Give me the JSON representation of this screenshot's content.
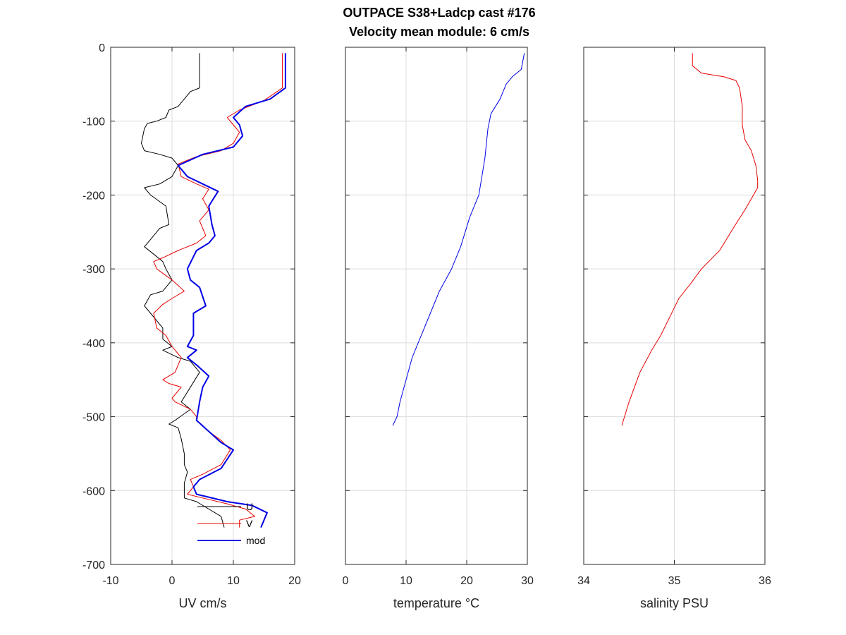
{
  "title_lines": [
    "OUTPACE S38+Ladcp cast #176",
    "Velocity mean module:  6 cm/s"
  ],
  "chart_data": [
    {
      "type": "line",
      "name": "uv",
      "xlabel": "UV cm/s",
      "ylabel": "",
      "xlim": [
        -10,
        20
      ],
      "ylim": [
        -700,
        0
      ],
      "xticks": [
        -10,
        0,
        10,
        20
      ],
      "yticks": [
        0,
        -100,
        -200,
        -300,
        -400,
        -500,
        -600,
        -700
      ],
      "grid": true,
      "legend": {
        "placement": "bottom-right",
        "entries": [
          "U",
          "V",
          "mod"
        ]
      },
      "series": [
        {
          "name": "U",
          "color": "#000000",
          "width": 1,
          "points": [
            [
              4.5,
              -8
            ],
            [
              4.5,
              -55
            ],
            [
              3,
              -60
            ],
            [
              2,
              -70
            ],
            [
              1,
              -80
            ],
            [
              -0.5,
              -85
            ],
            [
              -1,
              -95
            ],
            [
              -2.5,
              -100
            ],
            [
              -4,
              -103
            ],
            [
              -4.5,
              -110
            ],
            [
              -5,
              -130
            ],
            [
              -4.5,
              -140
            ],
            [
              -2,
              -145
            ],
            [
              0,
              -150
            ],
            [
              1,
              -160
            ],
            [
              0,
              -175
            ],
            [
              -2,
              -185
            ],
            [
              -4.5,
              -190
            ],
            [
              -3.5,
              -200
            ],
            [
              -1,
              -215
            ],
            [
              -0.5,
              -240
            ],
            [
              -2,
              -245
            ],
            [
              -3.5,
              -260
            ],
            [
              -4.5,
              -270
            ],
            [
              -3,
              -280
            ],
            [
              -1.5,
              -290
            ],
            [
              -1,
              -300
            ],
            [
              0,
              -315
            ],
            [
              -1.5,
              -330
            ],
            [
              -3.5,
              -335
            ],
            [
              -4.5,
              -350
            ],
            [
              -3.5,
              -360
            ],
            [
              -1.5,
              -380
            ],
            [
              -1.5,
              -395
            ],
            [
              0,
              -405
            ],
            [
              -1.5,
              -410
            ],
            [
              1,
              -420
            ],
            [
              3,
              -425
            ],
            [
              4.5,
              -440
            ],
            [
              3,
              -460
            ],
            [
              1.5,
              -480
            ],
            [
              3,
              -490
            ],
            [
              0.5,
              -505
            ],
            [
              -0.5,
              -510
            ],
            [
              1,
              -515
            ],
            [
              1.5,
              -530
            ],
            [
              2,
              -550
            ],
            [
              2,
              -565
            ],
            [
              2.5,
              -575
            ],
            [
              2,
              -590
            ],
            [
              2,
              -610
            ],
            [
              4,
              -615
            ],
            [
              6,
              -625
            ],
            [
              8,
              -635
            ],
            [
              8.5,
              -650
            ]
          ]
        },
        {
          "name": "V",
          "color": "#e60000",
          "width": 1,
          "points": [
            [
              18,
              -8
            ],
            [
              18,
              -55
            ],
            [
              15,
              -72
            ],
            [
              11,
              -85
            ],
            [
              9,
              -95
            ],
            [
              10,
              -105
            ],
            [
              11,
              -115
            ],
            [
              10,
              -130
            ],
            [
              8,
              -140
            ],
            [
              4,
              -148
            ],
            [
              1,
              -158
            ],
            [
              1.5,
              -175
            ],
            [
              4,
              -185
            ],
            [
              6,
              -192
            ],
            [
              5,
              -205
            ],
            [
              6,
              -220
            ],
            [
              4.5,
              -235
            ],
            [
              5.5,
              -255
            ],
            [
              4,
              -265
            ],
            [
              1,
              -275
            ],
            [
              -1.5,
              -285
            ],
            [
              -3,
              -290
            ],
            [
              -2.5,
              -300
            ],
            [
              0,
              -315
            ],
            [
              2,
              -330
            ],
            [
              0,
              -340
            ],
            [
              -1.5,
              -348
            ],
            [
              -3,
              -360
            ],
            [
              -2.5,
              -380
            ],
            [
              -1,
              -390
            ],
            [
              0,
              -405
            ],
            [
              1.5,
              -420
            ],
            [
              0.5,
              -440
            ],
            [
              -1.5,
              -450
            ],
            [
              -0.5,
              -455
            ],
            [
              1.5,
              -460
            ],
            [
              0,
              -475
            ],
            [
              0.5,
              -480
            ],
            [
              3,
              -490
            ],
            [
              4,
              -500
            ],
            [
              4,
              -505
            ],
            [
              6,
              -520
            ],
            [
              8,
              -532
            ],
            [
              9.5,
              -545
            ],
            [
              8,
              -565
            ],
            [
              5,
              -578
            ],
            [
              3,
              -585
            ],
            [
              3.5,
              -595
            ],
            [
              2.5,
              -605
            ],
            [
              5,
              -610
            ],
            [
              9,
              -618
            ],
            [
              12,
              -625
            ],
            [
              13.5,
              -635
            ],
            [
              11,
              -640
            ],
            [
              11,
              -650
            ]
          ]
        },
        {
          "name": "mod",
          "color": "#0000e6",
          "width": 2,
          "points": [
            [
              18.5,
              -8
            ],
            [
              18.5,
              -55
            ],
            [
              16,
              -70
            ],
            [
              12,
              -80
            ],
            [
              10,
              -95
            ],
            [
              11,
              -105
            ],
            [
              11.5,
              -120
            ],
            [
              10,
              -135
            ],
            [
              5,
              -145
            ],
            [
              1,
              -160
            ],
            [
              2.5,
              -175
            ],
            [
              5,
              -185
            ],
            [
              7.5,
              -195
            ],
            [
              6,
              -215
            ],
            [
              6.5,
              -240
            ],
            [
              7,
              -255
            ],
            [
              6,
              -265
            ],
            [
              4,
              -275
            ],
            [
              2.5,
              -300
            ],
            [
              3,
              -315
            ],
            [
              4.5,
              -325
            ],
            [
              5.5,
              -350
            ],
            [
              3.5,
              -360
            ],
            [
              3.5,
              -390
            ],
            [
              2.5,
              -405
            ],
            [
              4,
              -410
            ],
            [
              2.5,
              -420
            ],
            [
              4,
              -430
            ],
            [
              6,
              -445
            ],
            [
              5,
              -460
            ],
            [
              4.5,
              -480
            ],
            [
              4,
              -505
            ],
            [
              6,
              -520
            ],
            [
              8,
              -535
            ],
            [
              10,
              -545
            ],
            [
              8,
              -570
            ],
            [
              4.5,
              -585
            ],
            [
              3.5,
              -595
            ],
            [
              4,
              -605
            ],
            [
              9,
              -615
            ],
            [
              13,
              -620
            ],
            [
              15.5,
              -630
            ],
            [
              14.5,
              -650
            ]
          ]
        }
      ]
    },
    {
      "type": "line",
      "name": "temperature",
      "xlabel": "temperature °C",
      "ylabel": "",
      "xlim": [
        0,
        30
      ],
      "ylim": [
        -700,
        0
      ],
      "xticks": [
        0,
        10,
        20,
        30
      ],
      "yticks": [
        0,
        -100,
        -200,
        -300,
        -400,
        -500,
        -600,
        -700
      ],
      "grid": true,
      "series": [
        {
          "color": "#0000e6",
          "width": 1,
          "points": [
            [
              29.5,
              -8
            ],
            [
              29,
              -30
            ],
            [
              27.5,
              -40
            ],
            [
              26.5,
              -50
            ],
            [
              25.5,
              -70
            ],
            [
              24,
              -90
            ],
            [
              23.5,
              -110
            ],
            [
              23,
              -150
            ],
            [
              22,
              -200
            ],
            [
              20.5,
              -230
            ],
            [
              19,
              -270
            ],
            [
              17.5,
              -300
            ],
            [
              15.5,
              -330
            ],
            [
              14,
              -360
            ],
            [
              12.5,
              -390
            ],
            [
              11,
              -420
            ],
            [
              10,
              -450
            ],
            [
              9,
              -480
            ],
            [
              8.5,
              -500
            ],
            [
              7.8,
              -512
            ]
          ]
        }
      ]
    },
    {
      "type": "line",
      "name": "salinity",
      "xlabel": "salinity PSU",
      "ylabel": "",
      "xlim": [
        34,
        36
      ],
      "ylim": [
        -700,
        0
      ],
      "xticks": [
        34,
        35,
        36
      ],
      "yticks": [
        0,
        -100,
        -200,
        -300,
        -400,
        -500,
        -600,
        -700
      ],
      "grid": true,
      "series": [
        {
          "color": "#e60000",
          "width": 1,
          "points": [
            [
              35.2,
              -8
            ],
            [
              35.2,
              -25
            ],
            [
              35.3,
              -35
            ],
            [
              35.55,
              -40
            ],
            [
              35.68,
              -45
            ],
            [
              35.72,
              -55
            ],
            [
              35.75,
              -80
            ],
            [
              35.75,
              -105
            ],
            [
              35.78,
              -125
            ],
            [
              35.85,
              -140
            ],
            [
              35.9,
              -160
            ],
            [
              35.92,
              -180
            ],
            [
              35.92,
              -190
            ],
            [
              35.85,
              -205
            ],
            [
              35.78,
              -220
            ],
            [
              35.7,
              -235
            ],
            [
              35.6,
              -255
            ],
            [
              35.5,
              -275
            ],
            [
              35.3,
              -300
            ],
            [
              35.18,
              -320
            ],
            [
              35.05,
              -340
            ],
            [
              34.95,
              -365
            ],
            [
              34.85,
              -390
            ],
            [
              34.75,
              -410
            ],
            [
              34.62,
              -440
            ],
            [
              34.5,
              -480
            ],
            [
              34.45,
              -500
            ],
            [
              34.42,
              -512
            ]
          ]
        }
      ]
    }
  ]
}
